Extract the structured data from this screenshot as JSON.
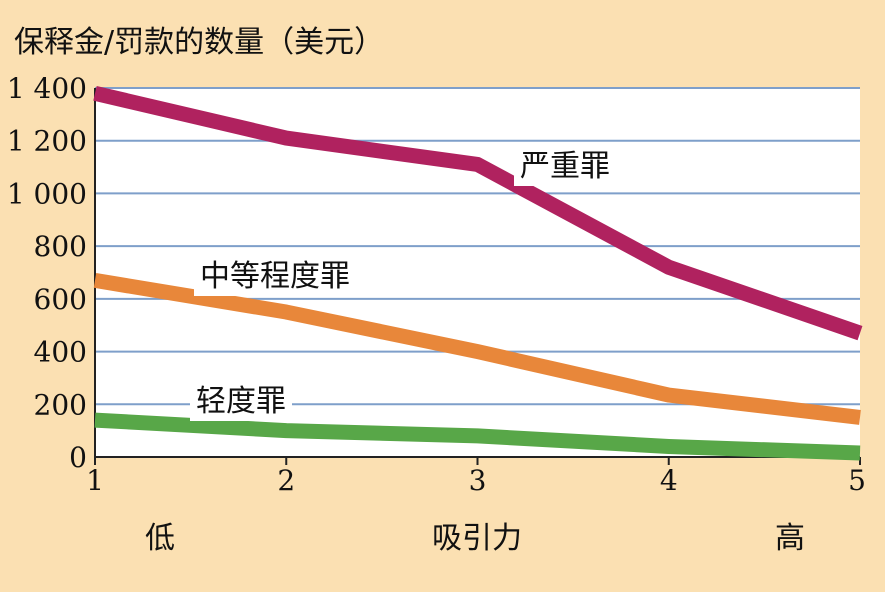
{
  "chart_data": {
    "type": "line",
    "title": "",
    "ylabel": "保释金/罚款的数量（美元）",
    "xlabel": "吸引力",
    "x": [
      1,
      2,
      3,
      4,
      5
    ],
    "x_tick_labels": [
      "1",
      "2",
      "3",
      "4",
      "5"
    ],
    "x_end_labels": {
      "low": "低",
      "high": "高"
    },
    "y_tick_labels": [
      "0",
      "200",
      "400",
      "600",
      "800",
      "1 000",
      "1 200",
      "1 400"
    ],
    "ylim": [
      0,
      1400
    ],
    "xlim": [
      1,
      5
    ],
    "grid": "horizontal",
    "series": [
      {
        "name": "严重罪",
        "color": "#b0225f",
        "values": [
          1380,
          1210,
          1110,
          720,
          470
        ]
      },
      {
        "name": "中等程度罪",
        "color": "#e8873a",
        "values": [
          670,
          550,
          400,
          235,
          150
        ]
      },
      {
        "name": "轻度罪",
        "color": "#58a748",
        "values": [
          140,
          100,
          80,
          40,
          15
        ]
      }
    ]
  }
}
